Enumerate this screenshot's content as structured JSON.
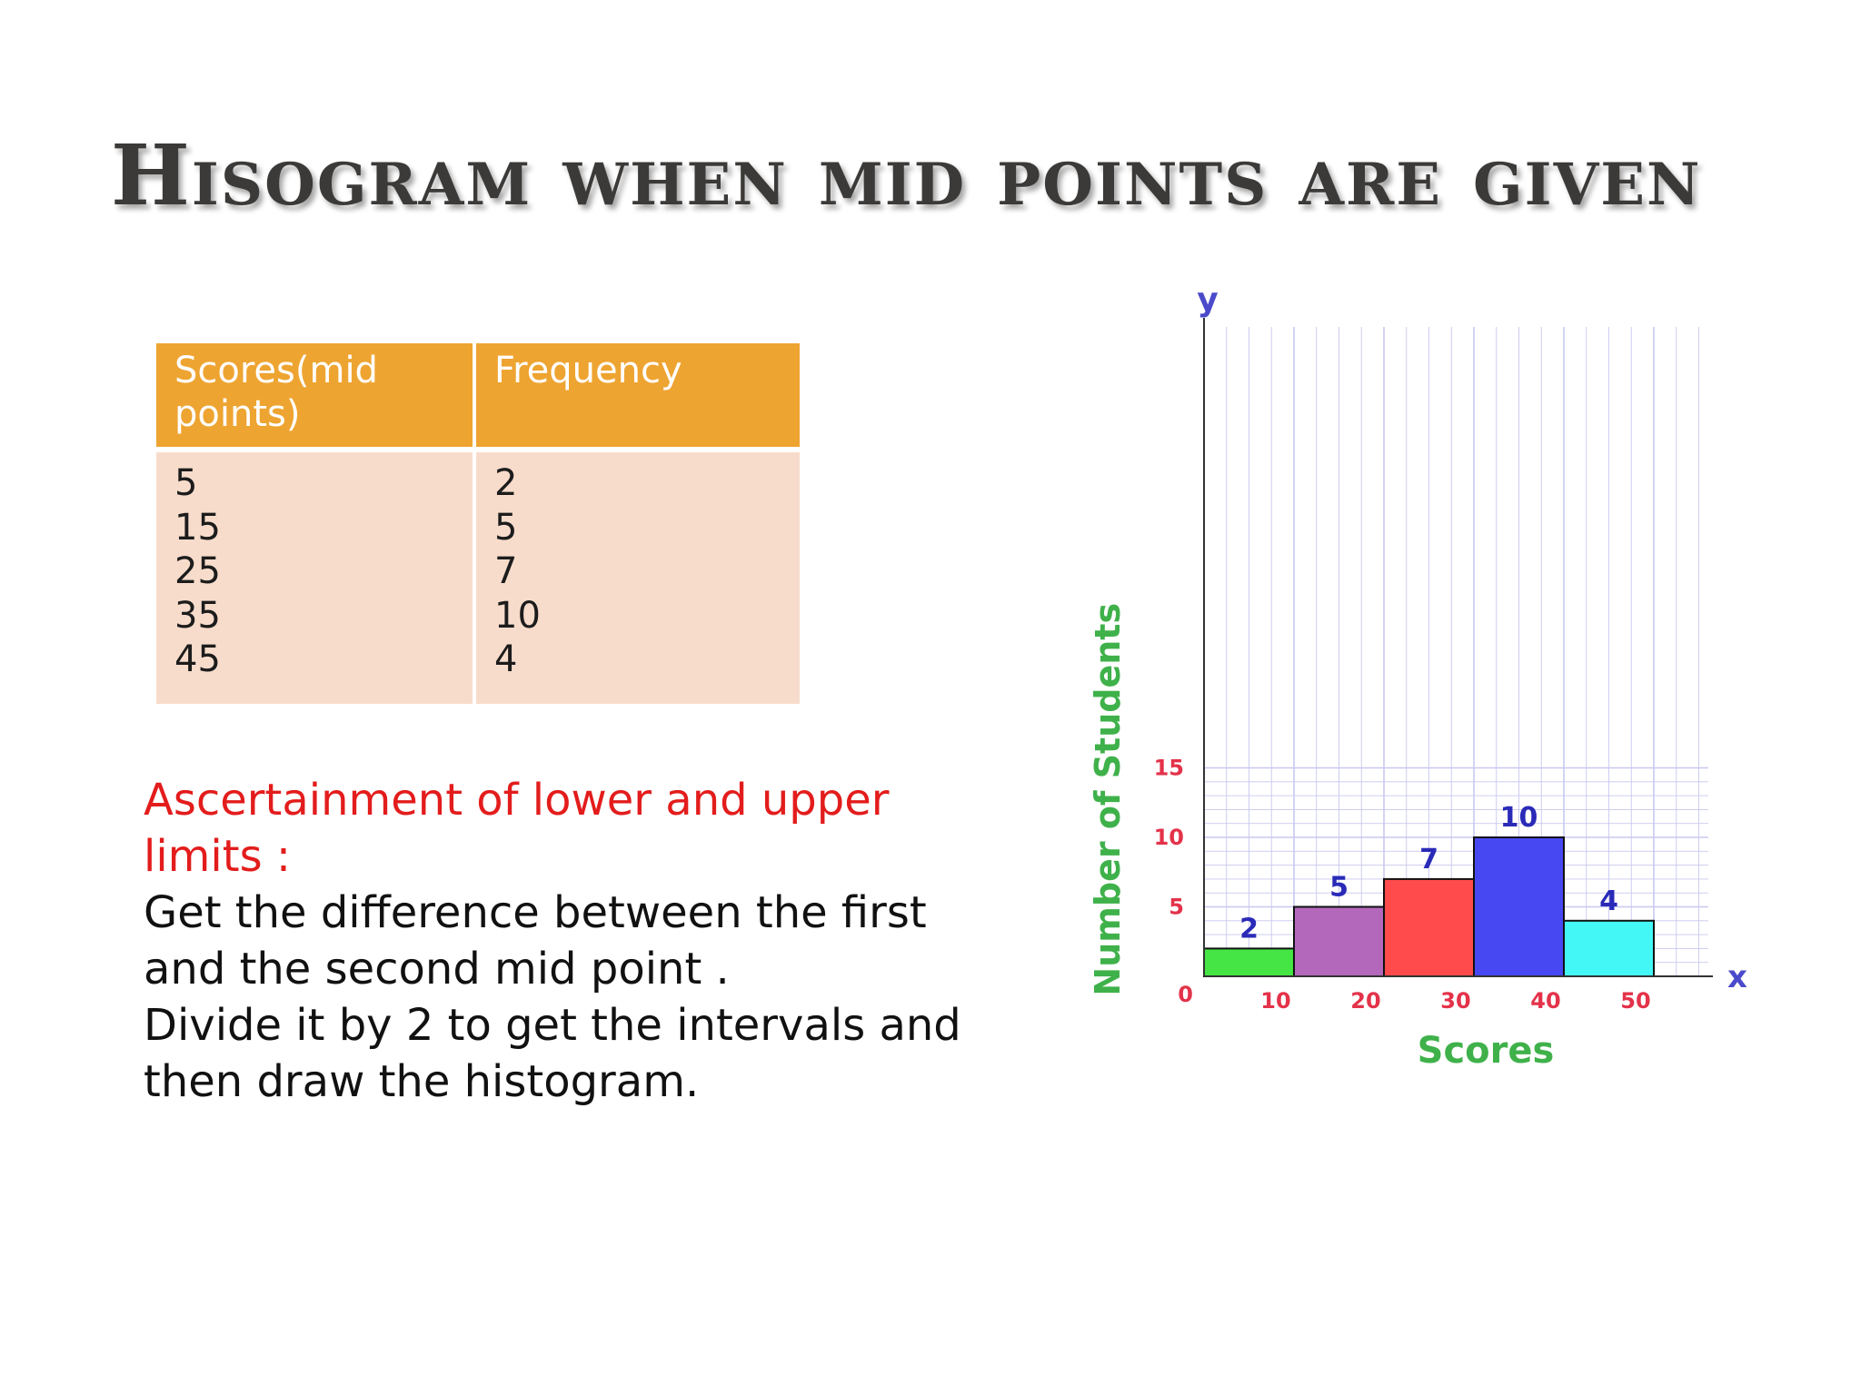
{
  "title": "Hisogram when mid points are given",
  "table": {
    "headers": [
      "Scores(mid points)",
      "Frequency"
    ],
    "mid_points": [
      "5",
      "15",
      "25",
      "35",
      "45"
    ],
    "frequencies": [
      "2",
      "5",
      "7",
      "10",
      "4"
    ]
  },
  "note": {
    "heading": "Ascertainment of lower and upper limits :",
    "lines": [
      "Get the difference between the first and the second mid point .",
      "Divide it by 2 to get the intervals and then draw the histogram."
    ]
  },
  "chart_data": {
    "type": "bar",
    "bins": [
      [
        0,
        10
      ],
      [
        10,
        20
      ],
      [
        20,
        30
      ],
      [
        30,
        40
      ],
      [
        40,
        50
      ]
    ],
    "values": [
      2,
      5,
      7,
      10,
      4
    ],
    "data_labels": [
      "2",
      "5",
      "7",
      "10",
      "4"
    ],
    "xlabel": "Scores",
    "ylabel": "Number of Students",
    "x_axis_name": "x",
    "y_axis_name": "y",
    "xticks": [
      10,
      20,
      30,
      40,
      50
    ],
    "yticks": [
      0,
      5,
      10,
      15
    ],
    "xlim": [
      0,
      50
    ],
    "ylim": [
      0,
      15
    ],
    "grid": true,
    "colors": [
      "#44e544",
      "#b468bc",
      "#ff4b4b",
      "#4848f2",
      "#44f7f7"
    ],
    "tick_color": "#e4324a",
    "label_color": "#3fb14a",
    "data_label_color": "#2a2ab8",
    "axis_name_color": "#4a4aca",
    "grid_color": "#c8c8f0"
  }
}
